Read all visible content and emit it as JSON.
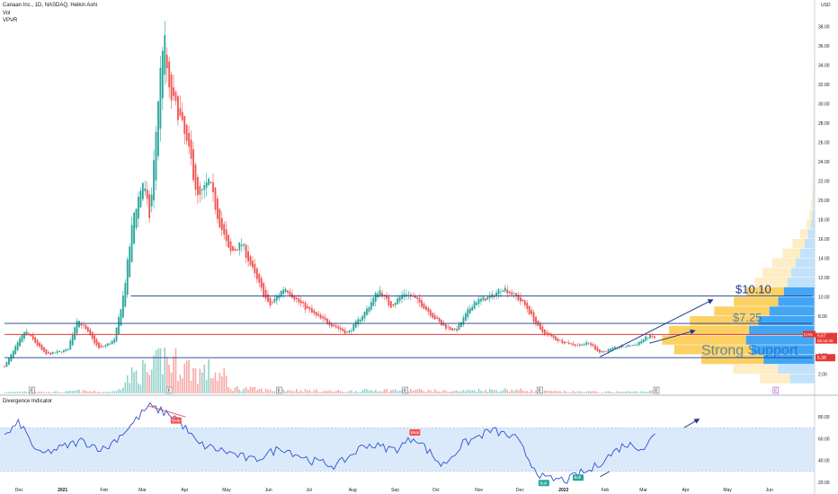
{
  "header": {
    "title": "Canaan Inc., 1D, NASDAQ, Heikin Ashi",
    "line2": "Vol",
    "line3": "VPVR",
    "currency": "USD"
  },
  "indicator": {
    "name": "Divergence Indicator",
    "y_ticks": [
      "80.00",
      "60.00",
      "40.00",
      "20.00"
    ],
    "labels": [
      {
        "text": "Bear",
        "x": "2021-03-25",
        "y": 73
      },
      {
        "text": "Bear",
        "x": "2021-09-15",
        "y": 62
      },
      {
        "text": "Bull",
        "x": "2021-12-18",
        "y": 23
      },
      {
        "text": "Bull",
        "x": "2022-01-12",
        "y": 28
      }
    ]
  },
  "price_axis": {
    "ticks": [
      "38.00",
      "36.00",
      "34.00",
      "32.00",
      "30.00",
      "28.00",
      "26.00",
      "24.00",
      "22.00",
      "20.00",
      "18.00",
      "16.00",
      "14.00",
      "12.00",
      "10.00",
      "8.00",
      "6.00",
      "4.00",
      "2.00"
    ],
    "last_symbol": "CAN",
    "last_price": "5.67",
    "countdown": "05:34:40",
    "support_price": "5.38"
  },
  "annotations": {
    "level_1": "$10.10",
    "level_2": "$7.25",
    "support_text": "Strong Support"
  },
  "time_axis": {
    "labels": [
      "Dec",
      "2021",
      "Feb",
      "Mar",
      "Apr",
      "May",
      "Jun",
      "Jul",
      "Aug",
      "Sep",
      "Oct",
      "Nov",
      "Dec",
      "2022",
      "Feb",
      "Mar",
      "Apr",
      "May",
      "Jun"
    ]
  },
  "events": [
    "E",
    "E",
    "E",
    "E",
    "E",
    "E",
    "E"
  ],
  "colors": {
    "up": "#26a69a",
    "down": "#ef5350",
    "level": "#1e3a8a",
    "red_line": "#e53935",
    "vpvr_up": "#2196f3",
    "vpvr_down": "#fbc02d",
    "indicator_line": "#2f4fd0",
    "indicator_band": "#dbeafb"
  },
  "chart_data": {
    "type": "candlestick",
    "x_start": "2020-11-20",
    "x_end": "2022-06-30",
    "ylim": [
      0,
      40
    ],
    "keypoints": [
      [
        "2020-11-20",
        2.8
      ],
      [
        "2020-12-05",
        6.5
      ],
      [
        "2020-12-20",
        4.0
      ],
      [
        "2021-01-05",
        4.5
      ],
      [
        "2021-01-12",
        7.8
      ],
      [
        "2021-01-28",
        4.6
      ],
      [
        "2021-02-08",
        5.5
      ],
      [
        "2021-02-15",
        10.5
      ],
      [
        "2021-02-22",
        18.5
      ],
      [
        "2021-03-01",
        22.0
      ],
      [
        "2021-03-06",
        18.0
      ],
      [
        "2021-03-12",
        30.5
      ],
      [
        "2021-03-16",
        37.5
      ],
      [
        "2021-03-20",
        31.0
      ],
      [
        "2021-03-27",
        29.0
      ],
      [
        "2021-04-05",
        24.0
      ],
      [
        "2021-04-10",
        20.0
      ],
      [
        "2021-04-18",
        22.0
      ],
      [
        "2021-04-25",
        18.0
      ],
      [
        "2021-05-03",
        14.5
      ],
      [
        "2021-05-12",
        15.5
      ],
      [
        "2021-05-22",
        12.0
      ],
      [
        "2021-06-01",
        9.0
      ],
      [
        "2021-06-12",
        11.0
      ],
      [
        "2021-06-22",
        9.5
      ],
      [
        "2021-07-05",
        8.0
      ],
      [
        "2021-07-18",
        7.0
      ],
      [
        "2021-07-28",
        6.2
      ],
      [
        "2021-08-10",
        8.5
      ],
      [
        "2021-08-20",
        10.8
      ],
      [
        "2021-08-28",
        9.0
      ],
      [
        "2021-09-08",
        10.5
      ],
      [
        "2021-09-20",
        9.2
      ],
      [
        "2021-10-05",
        7.0
      ],
      [
        "2021-10-15",
        6.5
      ],
      [
        "2021-10-28",
        9.5
      ],
      [
        "2021-11-10",
        10.0
      ],
      [
        "2021-11-18",
        11.0
      ],
      [
        "2021-11-28",
        10.0
      ],
      [
        "2021-12-05",
        9.0
      ],
      [
        "2021-12-15",
        6.5
      ],
      [
        "2021-12-28",
        5.5
      ],
      [
        "2022-01-10",
        5.0
      ],
      [
        "2022-01-20",
        5.2
      ],
      [
        "2022-01-28",
        4.2
      ],
      [
        "2022-02-10",
        4.8
      ],
      [
        "2022-02-22",
        5.0
      ],
      [
        "2022-03-05",
        6.0
      ],
      [
        "2022-03-10",
        5.67
      ]
    ],
    "volume_ylim": [
      0,
      15
    ],
    "indicator_ylim": [
      15,
      95
    ],
    "indicator_keypoints": [
      [
        "2020-11-20",
        62
      ],
      [
        "2020-12-01",
        75
      ],
      [
        "2020-12-15",
        45
      ],
      [
        "2021-01-01",
        52
      ],
      [
        "2021-01-15",
        58
      ],
      [
        "2021-02-01",
        50
      ],
      [
        "2021-02-20",
        72
      ],
      [
        "2021-03-05",
        90
      ],
      [
        "2021-03-25",
        80
      ],
      [
        "2021-04-10",
        55
      ],
      [
        "2021-05-01",
        48
      ],
      [
        "2021-05-20",
        40
      ],
      [
        "2021-06-10",
        52
      ],
      [
        "2021-07-01",
        40
      ],
      [
        "2021-07-20",
        35
      ],
      [
        "2021-08-10",
        55
      ],
      [
        "2021-09-01",
        50
      ],
      [
        "2021-09-15",
        62
      ],
      [
        "2021-10-05",
        35
      ],
      [
        "2021-10-20",
        55
      ],
      [
        "2021-11-10",
        68
      ],
      [
        "2021-11-28",
        60
      ],
      [
        "2021-12-10",
        35
      ],
      [
        "2021-12-18",
        23
      ],
      [
        "2022-01-05",
        22
      ],
      [
        "2022-01-12",
        28
      ],
      [
        "2022-01-20",
        30
      ],
      [
        "2022-02-01",
        42
      ],
      [
        "2022-02-15",
        55
      ],
      [
        "2022-03-01",
        52
      ],
      [
        "2022-03-10",
        65
      ]
    ],
    "horizontal_levels": [
      {
        "name": "$10.10",
        "y": 10.1,
        "x_start": "2021-02-20",
        "color": "#1e3a8a"
      },
      {
        "name": "$7.25",
        "y": 7.25,
        "x_start": "2020-11-20",
        "color": "#1e3a8a"
      },
      {
        "name": "red",
        "y": 6.1,
        "x_start": "2020-11-20",
        "color": "#e53935"
      },
      {
        "name": "Strong Support",
        "y": 3.7,
        "x_start": "2020-11-20",
        "color": "#1e3a8a"
      }
    ],
    "trendlines": [
      {
        "from": [
          "2022-01-28",
          3.8
        ],
        "to": [
          "2022-04-20",
          9.7
        ],
        "pane": "price"
      },
      {
        "from": [
          "2022-03-05",
          5.2
        ],
        "to": [
          "2022-04-07",
          6.5
        ],
        "pane": "price"
      },
      {
        "from": [
          "2022-01-28",
          25
        ],
        "to": [
          "2022-04-10",
          78
        ],
        "pane": "indicator"
      },
      {
        "from": [
          "2021-03-05",
          90
        ],
        "to": [
          "2021-04-01",
          80
        ],
        "pane": "indicator",
        "color": "#ef5350"
      }
    ]
  }
}
